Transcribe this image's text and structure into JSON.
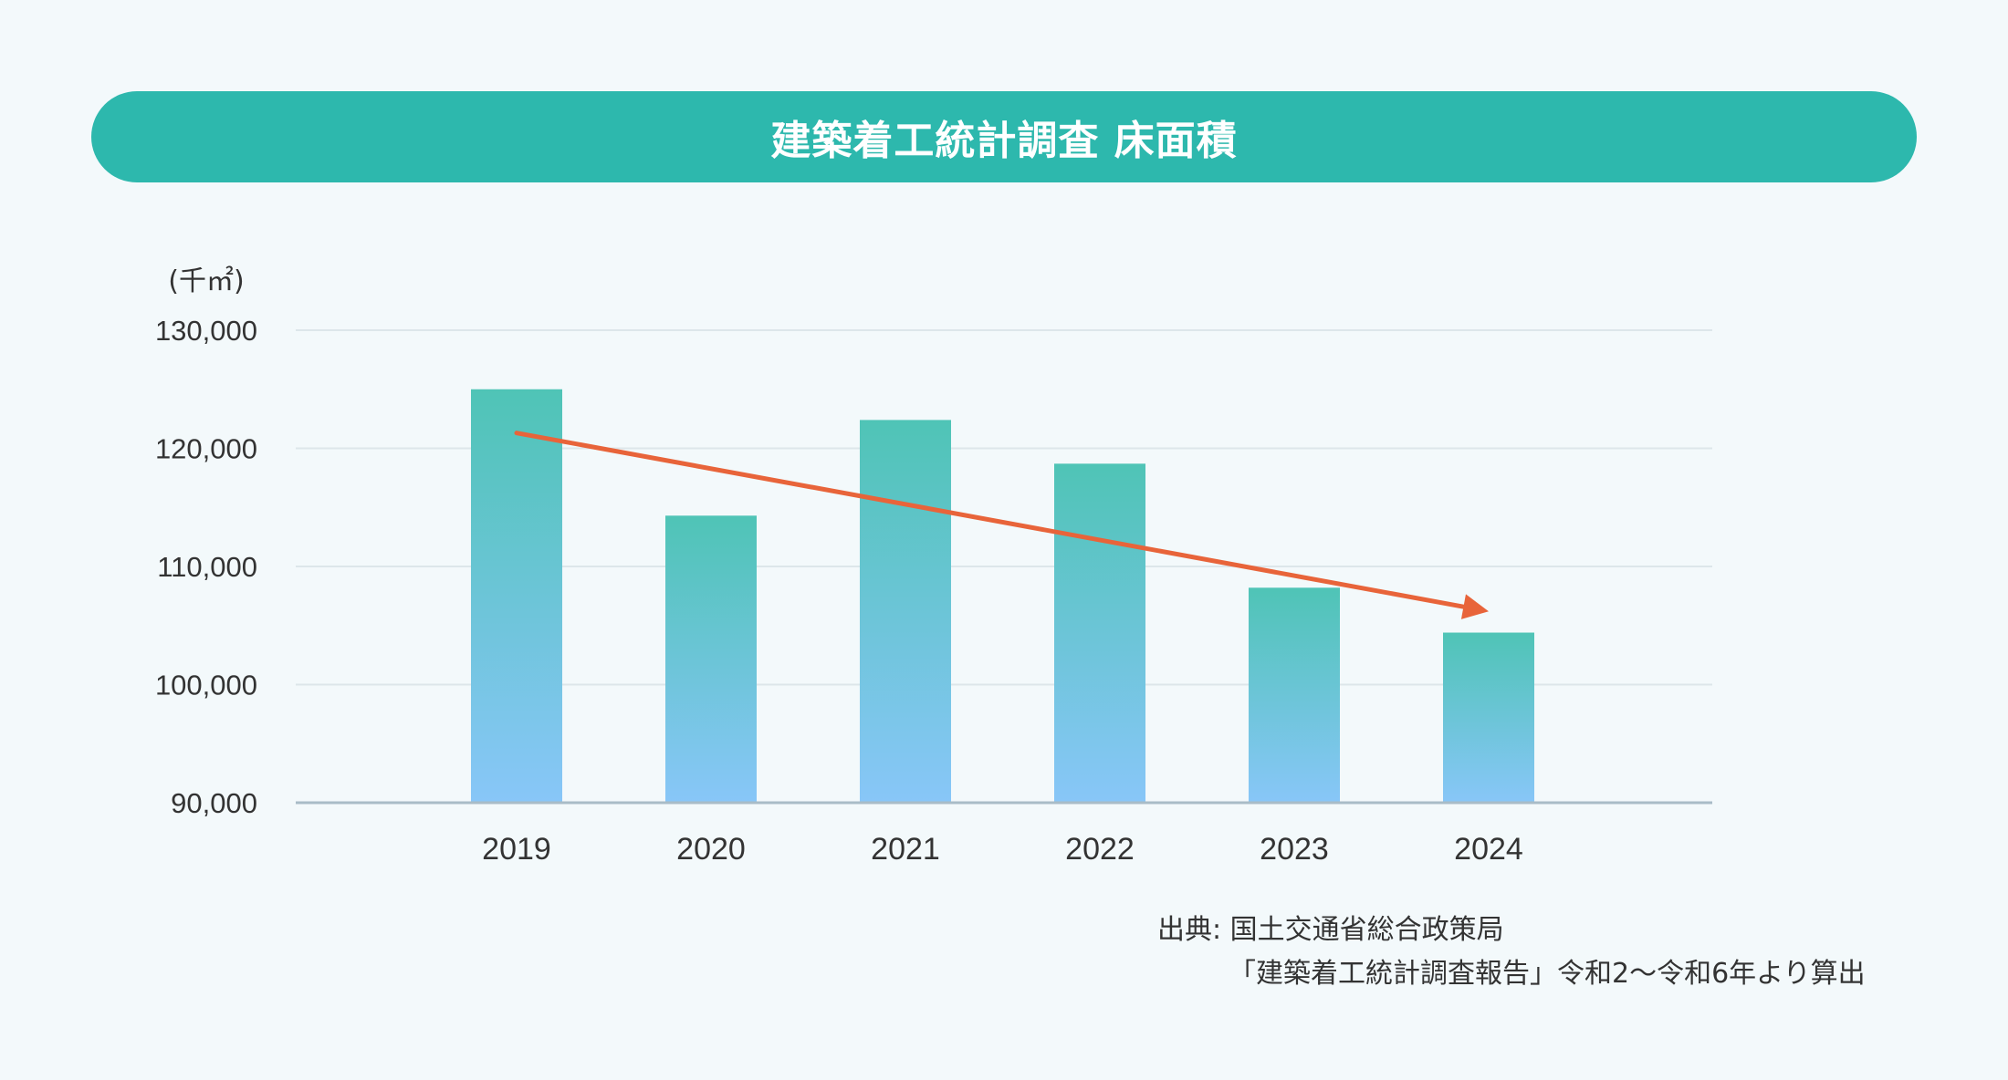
{
  "title": "建築着工統計調査 床面積",
  "source": {
    "line1": "出典: 国土交通省総合政策局",
    "line2": "「建築着工統計調査報告」令和2〜令和6年より算出"
  },
  "colors": {
    "banner": "#2db8ad",
    "bar_top": "#4fc4b6",
    "bar_bottom": "#88c6f8",
    "trend_arrow": "#e8643a",
    "grid": "#dde6ea",
    "axis": "#a9bcc7"
  },
  "chart_data": {
    "type": "bar",
    "unit_label": "(千㎡)",
    "categories": [
      "2019",
      "2020",
      "2021",
      "2022",
      "2023",
      "2024"
    ],
    "values": [
      125000,
      114300,
      122400,
      118700,
      108200,
      104400
    ],
    "ylim": [
      90000,
      130000
    ],
    "yticks": [
      90000,
      100000,
      110000,
      120000,
      130000
    ],
    "ytick_labels": [
      "90,000",
      "100,000",
      "110,000",
      "120,000",
      "130,000"
    ],
    "grid": true,
    "trend_arrow": {
      "from": [
        "2019",
        121300
      ],
      "to": [
        "2024",
        106200
      ]
    }
  }
}
